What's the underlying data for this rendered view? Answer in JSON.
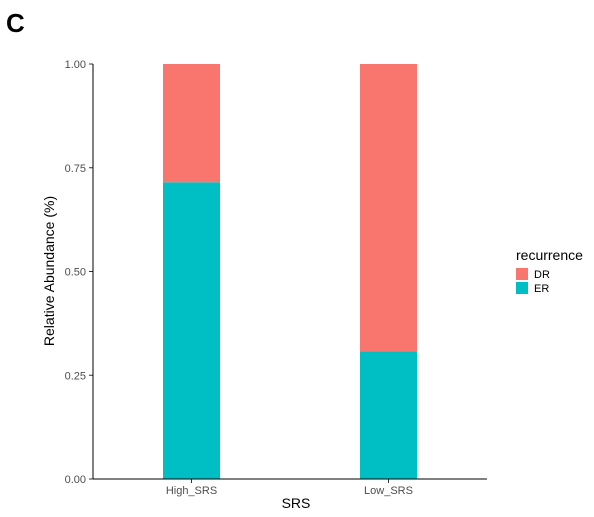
{
  "panel_label": "C",
  "chart_data": {
    "type": "bar",
    "stacked": true,
    "categories": [
      "High_SRS",
      "Low_SRS"
    ],
    "series": [
      {
        "name": "ER",
        "values": [
          0.715,
          0.308
        ],
        "color": "#00BFC4"
      },
      {
        "name": "DR",
        "values": [
          0.285,
          0.692
        ],
        "color": "#F8766D"
      }
    ],
    "xlabel": "SRS",
    "ylabel": "Relative Abundance (%)",
    "ylim": [
      0,
      1
    ],
    "yticks": [
      "0.00",
      "0.25",
      "0.50",
      "0.75",
      "1.00"
    ],
    "ytick_values": [
      0,
      0.25,
      0.5,
      0.75,
      1
    ],
    "grid": false,
    "legend": {
      "title": "recurrence",
      "position": "right",
      "items": [
        {
          "label": "DR",
          "color": "#F8766D"
        },
        {
          "label": "ER",
          "color": "#00BFC4"
        }
      ]
    }
  }
}
